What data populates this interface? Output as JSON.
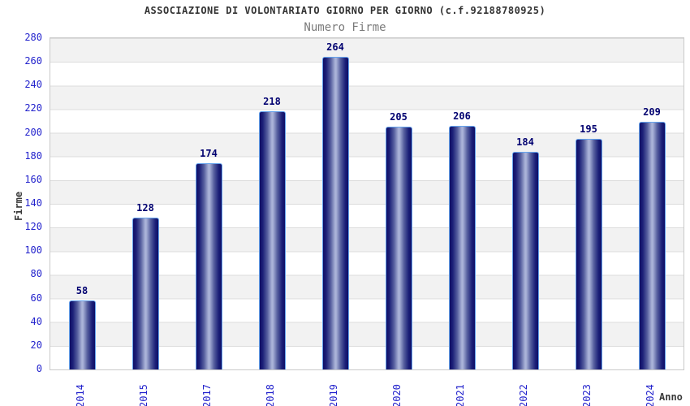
{
  "chart_data": {
    "type": "bar",
    "title": "ASSOCIAZIONE DI VOLONTARIATO GIORNO PER GIORNO (c.f.92188780925)",
    "subtitle": "Numero Firme",
    "xlabel": "Anno",
    "ylabel": "Firme",
    "categories": [
      "2014",
      "2015",
      "2017",
      "2018",
      "2019",
      "2020",
      "2021",
      "2022",
      "2023",
      "2024"
    ],
    "values": [
      58,
      128,
      174,
      218,
      264,
      205,
      206,
      184,
      195,
      209
    ],
    "ylim": [
      0,
      280
    ],
    "ytick_step": 20,
    "yticks": [
      0,
      20,
      40,
      60,
      80,
      100,
      120,
      140,
      160,
      180,
      200,
      220,
      240,
      260,
      280
    ],
    "grid": "alternating-horizontal-bands",
    "legend_position": "none",
    "value_labels_shown": true,
    "colors": {
      "title": "#333333",
      "subtitle": "#7a7a7a",
      "tick_label": "#2222cc",
      "value_label": "#000070",
      "axis_title": "#3a3a3a",
      "bar_edge": "#0e0e66",
      "bar_mid": "#555e9e",
      "bar_center": "#aab3d8",
      "bar_border": "#64a2ec",
      "band_gray": "#f2f2f2",
      "band_white": "#ffffff",
      "gridline": "#dcdcdc",
      "plot_border": "#c9c9c9",
      "background": "#ffffff"
    }
  }
}
